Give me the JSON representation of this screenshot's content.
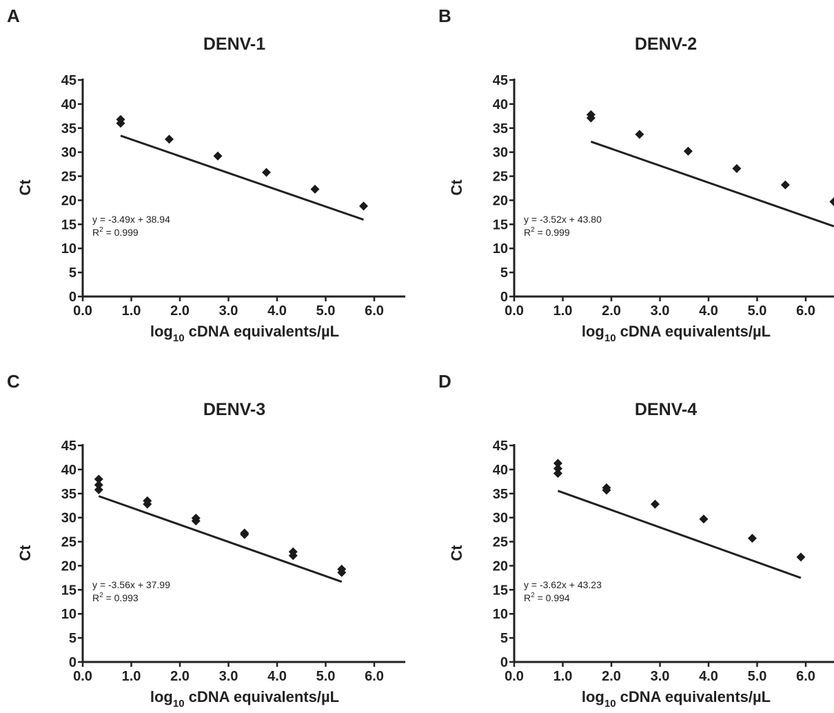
{
  "chart_data": [
    {
      "panel_letter": "A",
      "type": "scatter",
      "title": "DENV-1",
      "xlabel_main": "log",
      "xlabel_sub": "10",
      "xlabel_rest": " cDNA equivalents/µL",
      "ylabel": "Ct",
      "xlim": [
        0,
        6.5
      ],
      "ylim": [
        0,
        45
      ],
      "xticks": [
        "0.0",
        "1.0",
        "2.0",
        "3.0",
        "4.0",
        "5.0",
        "6.0"
      ],
      "yticks": [
        "0",
        "5",
        "10",
        "15",
        "20",
        "25",
        "30",
        "35",
        "40",
        "45"
      ],
      "series": [
        {
          "points": [
            {
              "x": 0.78,
              "y": 36.8
            },
            {
              "x": 0.78,
              "y": 36.0
            },
            {
              "x": 1.78,
              "y": 32.7
            },
            {
              "x": 2.78,
              "y": 29.2
            },
            {
              "x": 3.78,
              "y": 25.8
            },
            {
              "x": 4.78,
              "y": 22.3
            },
            {
              "x": 5.78,
              "y": 18.8
            }
          ]
        }
      ],
      "fit": {
        "slope": -3.49,
        "intercept": 38.94,
        "x_range": [
          0.78,
          5.78
        ]
      },
      "equation": "y = -3.49x + 38.94",
      "r2_prefix": "R",
      "r2_sup": "2",
      "r2_value": " = 0.999"
    },
    {
      "panel_letter": "B",
      "type": "scatter",
      "title": "DENV-2",
      "xlabel_main": "log",
      "xlabel_sub": "10",
      "xlabel_rest": " cDNA equivalents/µL",
      "ylabel": "Ct",
      "xlim": [
        0,
        6.5
      ],
      "ylim": [
        0,
        45
      ],
      "xticks": [
        "0.0",
        "1.0",
        "2.0",
        "3.0",
        "4.0",
        "5.0",
        "6.0"
      ],
      "yticks": [
        "0",
        "5",
        "10",
        "15",
        "20",
        "25",
        "30",
        "35",
        "40",
        "45"
      ],
      "series": [
        {
          "points": [
            {
              "x": 1.58,
              "y": 37.8
            },
            {
              "x": 1.58,
              "y": 37.1
            },
            {
              "x": 2.58,
              "y": 33.7
            },
            {
              "x": 3.58,
              "y": 30.2
            },
            {
              "x": 4.58,
              "y": 26.6
            },
            {
              "x": 5.58,
              "y": 23.2
            },
            {
              "x": 6.58,
              "y": 19.7
            }
          ]
        }
      ],
      "fit": {
        "slope": -3.52,
        "intercept": 43.8,
        "x_range": [
          1.58,
          6.58
        ]
      },
      "equation": "y = -3.52x + 43.80",
      "r2_prefix": "R",
      "r2_sup": "2",
      "r2_value": " = 0.999"
    },
    {
      "panel_letter": "C",
      "type": "scatter",
      "title": "DENV-3",
      "xlabel_main": "log",
      "xlabel_sub": "10",
      "xlabel_rest": " cDNA equivalents/µL",
      "ylabel": "Ct",
      "xlim": [
        0,
        6.5
      ],
      "ylim": [
        0,
        45
      ],
      "xticks": [
        "0.0",
        "1.0",
        "2.0",
        "3.0",
        "4.0",
        "5.0",
        "6.0"
      ],
      "yticks": [
        "0",
        "5",
        "10",
        "15",
        "20",
        "25",
        "30",
        "35",
        "40",
        "45"
      ],
      "series": [
        {
          "points": [
            {
              "x": 0.33,
              "y": 38.0
            },
            {
              "x": 0.33,
              "y": 36.8
            },
            {
              "x": 0.33,
              "y": 35.8
            },
            {
              "x": 1.33,
              "y": 33.5
            },
            {
              "x": 1.33,
              "y": 32.8
            },
            {
              "x": 2.33,
              "y": 29.9
            },
            {
              "x": 2.33,
              "y": 29.3
            },
            {
              "x": 3.33,
              "y": 26.8
            },
            {
              "x": 3.33,
              "y": 26.5
            },
            {
              "x": 4.33,
              "y": 22.9
            },
            {
              "x": 4.33,
              "y": 22.1
            },
            {
              "x": 5.33,
              "y": 19.3
            },
            {
              "x": 5.33,
              "y": 18.6
            }
          ]
        }
      ],
      "fit": {
        "slope": -3.56,
        "intercept": 37.99,
        "x_range": [
          0.33,
          5.33
        ]
      },
      "equation": "y = -3.56x + 37.99",
      "r2_prefix": "R",
      "r2_sup": "2",
      "r2_value": " = 0.993"
    },
    {
      "panel_letter": "D",
      "type": "scatter",
      "title": "DENV-4",
      "xlabel_main": "log",
      "xlabel_sub": "10",
      "xlabel_rest": " cDNA equivalents/µL",
      "ylabel": "Ct",
      "xlim": [
        0,
        6.5
      ],
      "ylim": [
        0,
        45
      ],
      "xticks": [
        "0.0",
        "1.0",
        "2.0",
        "3.0",
        "4.0",
        "5.0",
        "6.0"
      ],
      "yticks": [
        "0",
        "5",
        "10",
        "15",
        "20",
        "25",
        "30",
        "35",
        "40",
        "45"
      ],
      "series": [
        {
          "points": [
            {
              "x": 0.9,
              "y": 41.3
            },
            {
              "x": 0.9,
              "y": 40.2
            },
            {
              "x": 0.9,
              "y": 39.2
            },
            {
              "x": 1.9,
              "y": 36.2
            },
            {
              "x": 1.9,
              "y": 35.7
            },
            {
              "x": 2.9,
              "y": 32.8
            },
            {
              "x": 3.9,
              "y": 29.7
            },
            {
              "x": 4.9,
              "y": 25.7
            },
            {
              "x": 5.9,
              "y": 21.8
            }
          ]
        }
      ],
      "fit": {
        "slope": -3.62,
        "intercept": 43.23,
        "x_range": [
          0.9,
          5.9
        ]
      },
      "equation": "y = -3.62x + 43.23",
      "r2_prefix": "R",
      "r2_sup": "2",
      "r2_value": " = 0.994"
    }
  ],
  "colors": {
    "ink": "#222222",
    "marker": "#1a1a1a"
  }
}
